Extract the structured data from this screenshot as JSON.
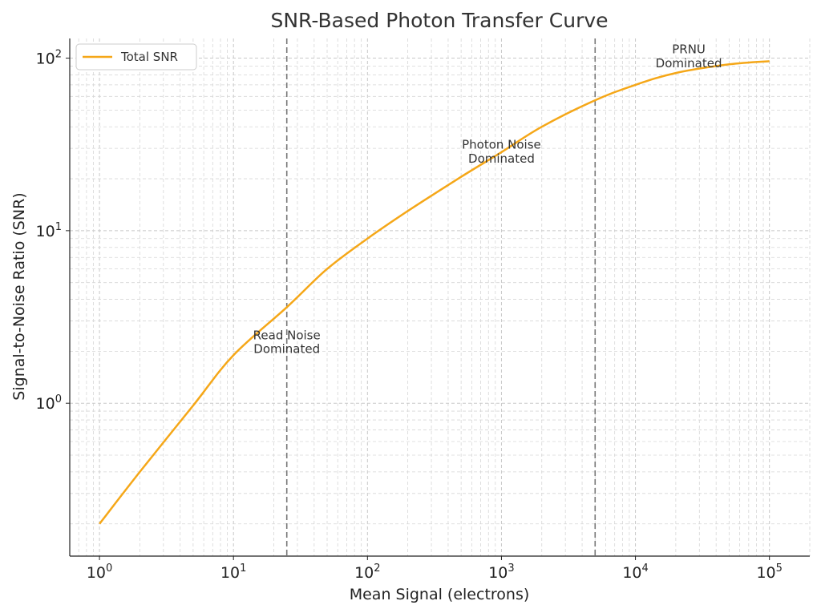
{
  "chart_data": {
    "type": "line",
    "title": "SNR-Based Photon Transfer Curve",
    "xlabel": "Mean Signal (electrons)",
    "ylabel": "Signal-to-Noise Ratio (SNR)",
    "xscale": "log",
    "yscale": "log",
    "xlim": [
      0.6,
      200000
    ],
    "ylim": [
      0.13,
      130
    ],
    "grid": true,
    "legend_position": "top-left",
    "colors": {
      "series": "#f5a718",
      "region_line": "#777777"
    },
    "x_ticks": [
      {
        "base": "10",
        "exp": "0",
        "value": 1
      },
      {
        "base": "10",
        "exp": "1",
        "value": 10
      },
      {
        "base": "10",
        "exp": "2",
        "value": 100
      },
      {
        "base": "10",
        "exp": "3",
        "value": 1000
      },
      {
        "base": "10",
        "exp": "4",
        "value": 10000
      },
      {
        "base": "10",
        "exp": "5",
        "value": 100000
      }
    ],
    "y_ticks": [
      {
        "base": "10",
        "exp": "0",
        "value": 1
      },
      {
        "base": "10",
        "exp": "1",
        "value": 10
      },
      {
        "base": "10",
        "exp": "2",
        "value": 100
      }
    ],
    "series": [
      {
        "name": "Total SNR",
        "x": [
          1,
          2,
          5,
          10,
          25,
          50,
          100,
          200,
          500,
          1000,
          2000,
          5000,
          10000,
          20000,
          50000,
          100000
        ],
        "y": [
          0.2,
          0.4,
          0.97,
          1.9,
          3.6,
          6.0,
          9.0,
          13.0,
          20.5,
          28.5,
          40.0,
          57.0,
          70.0,
          82.0,
          92.0,
          96.0
        ]
      }
    ],
    "vlines": [
      25,
      5000
    ],
    "annotations": [
      {
        "lines": [
          "Read Noise",
          "Dominated"
        ],
        "x": 25,
        "y": 2.2
      },
      {
        "lines": [
          "Photon Noise",
          "Dominated"
        ],
        "x": 1000,
        "y": 28
      },
      {
        "lines": [
          "PRNU",
          "Dominated"
        ],
        "x": 25000,
        "y": 100
      }
    ]
  }
}
